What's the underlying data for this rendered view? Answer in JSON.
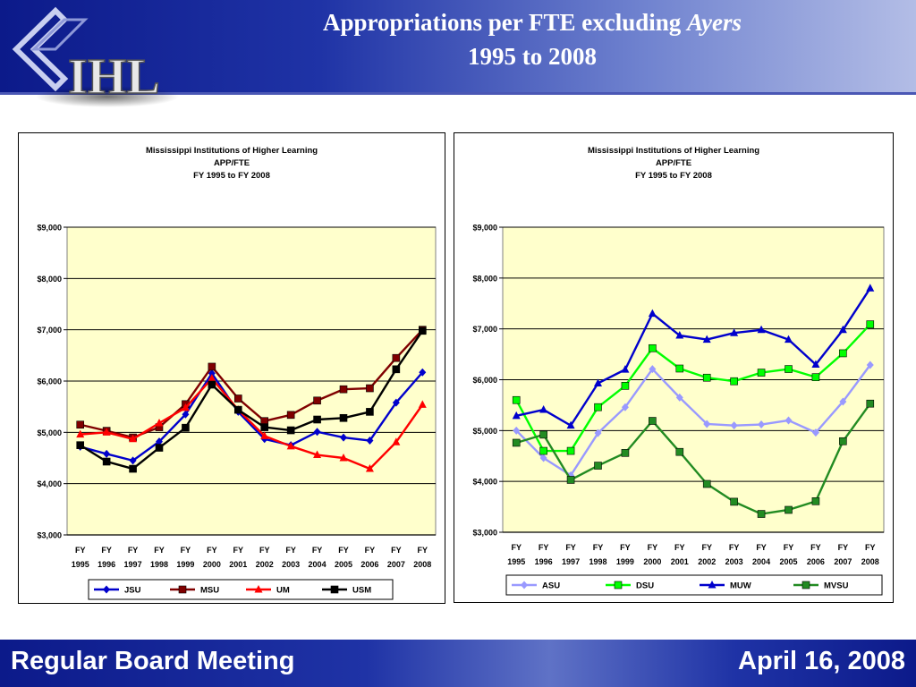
{
  "slide": {
    "title_line1": "Appropriations per FTE excluding",
    "title_line1_italic": "Ayers",
    "title_line2": "1995 to 2008",
    "logo_text": "IHL",
    "footer_left": "Regular Board Meeting",
    "footer_right": "April 16, 2008"
  },
  "colors": {
    "header_blue": "#1f33a6",
    "plot_bg": "#ffffcc"
  },
  "chart_data": [
    {
      "type": "line",
      "title": [
        "Mississippi Institutions of Higher Learning",
        "APP/FTE",
        "FY 1995 to FY 2008"
      ],
      "categories": [
        [
          "FY",
          "1995"
        ],
        [
          "FY",
          "1996"
        ],
        [
          "FY",
          "1997"
        ],
        [
          "FY",
          "1998"
        ],
        [
          "FY",
          "1999"
        ],
        [
          "FY",
          "2000"
        ],
        [
          "FY",
          "2001"
        ],
        [
          "FY",
          "2002"
        ],
        [
          "FY",
          "2003"
        ],
        [
          "FY",
          "2004"
        ],
        [
          "FY",
          "2005"
        ],
        [
          "FY",
          "2006"
        ],
        [
          "FY",
          "2007"
        ],
        [
          "FY",
          "2008"
        ]
      ],
      "ylim": [
        3000,
        9000
      ],
      "yticks": [
        3000,
        4000,
        5000,
        6000,
        7000,
        8000,
        9000
      ],
      "ytick_labels": [
        "$3,000",
        "$4,000",
        "$5,000",
        "$6,000",
        "$7,000",
        "$8,000",
        "$9,000"
      ],
      "grid": true,
      "legend": "bottom",
      "series": [
        {
          "name": "JSU",
          "color": "#0000cc",
          "marker": "diamond",
          "values": [
            4720,
            4580,
            4450,
            4820,
            5350,
            6150,
            5400,
            4870,
            4750,
            5010,
            4900,
            4840,
            5580,
            6170
          ]
        },
        {
          "name": "MSU",
          "color": "#800000",
          "marker": "square",
          "values": [
            5150,
            5030,
            4900,
            5100,
            5550,
            6280,
            5660,
            5220,
            5340,
            5620,
            5840,
            5860,
            6450,
            7000
          ]
        },
        {
          "name": "UM",
          "color": "#ff0000",
          "marker": "triangle",
          "values": [
            4960,
            5000,
            4870,
            5180,
            5480,
            6050,
            5440,
            4930,
            4730,
            4560,
            4500,
            4290,
            4810,
            5540
          ]
        },
        {
          "name": "USM",
          "color": "#000000",
          "marker": "square",
          "values": [
            4750,
            4430,
            4290,
            4700,
            5090,
            5930,
            5440,
            5100,
            5040,
            5250,
            5280,
            5400,
            6230,
            6980
          ]
        }
      ]
    },
    {
      "type": "line",
      "title": [
        "Mississippi Institutions of Higher Learning",
        "APP/FTE",
        "FY 1995 to FY 2008"
      ],
      "categories": [
        [
          "FY",
          "1995"
        ],
        [
          "FY",
          "1996"
        ],
        [
          "FY",
          "1997"
        ],
        [
          "FY",
          "1998"
        ],
        [
          "FY",
          "1999"
        ],
        [
          "FY",
          "2000"
        ],
        [
          "FY",
          "2001"
        ],
        [
          "FY",
          "2002"
        ],
        [
          "FY",
          "2003"
        ],
        [
          "FY",
          "2004"
        ],
        [
          "FY",
          "2005"
        ],
        [
          "FY",
          "2006"
        ],
        [
          "FY",
          "2007"
        ],
        [
          "FY",
          "2008"
        ]
      ],
      "ylim": [
        3000,
        9000
      ],
      "yticks": [
        3000,
        4000,
        5000,
        6000,
        7000,
        8000,
        9000
      ],
      "ytick_labels": [
        "$3,000",
        "$4,000",
        "$5,000",
        "$6,000",
        "$7,000",
        "$8,000",
        "$9,000"
      ],
      "grid": true,
      "legend": "bottom",
      "series": [
        {
          "name": "ASU",
          "color": "#9999ff",
          "marker": "diamond",
          "values": [
            5000,
            4460,
            4120,
            4950,
            5460,
            6210,
            5650,
            5130,
            5100,
            5120,
            5200,
            4960,
            5570,
            6290
          ]
        },
        {
          "name": "DSU",
          "color": "#00ff00",
          "marker": "square",
          "values": [
            5600,
            4600,
            4600,
            5460,
            5880,
            6620,
            6220,
            6040,
            5970,
            6140,
            6210,
            6050,
            6520,
            7090
          ]
        },
        {
          "name": "MUW",
          "color": "#0000cc",
          "marker": "triangle",
          "values": [
            5290,
            5410,
            5100,
            5930,
            6200,
            7300,
            6870,
            6790,
            6920,
            6980,
            6790,
            6300,
            6980,
            7800
          ]
        },
        {
          "name": "MVSU",
          "color": "#228b22",
          "marker": "square",
          "values": [
            4760,
            4920,
            4030,
            4310,
            4560,
            5190,
            4580,
            3950,
            3600,
            3360,
            3440,
            3610,
            4790,
            5530
          ]
        }
      ]
    }
  ]
}
